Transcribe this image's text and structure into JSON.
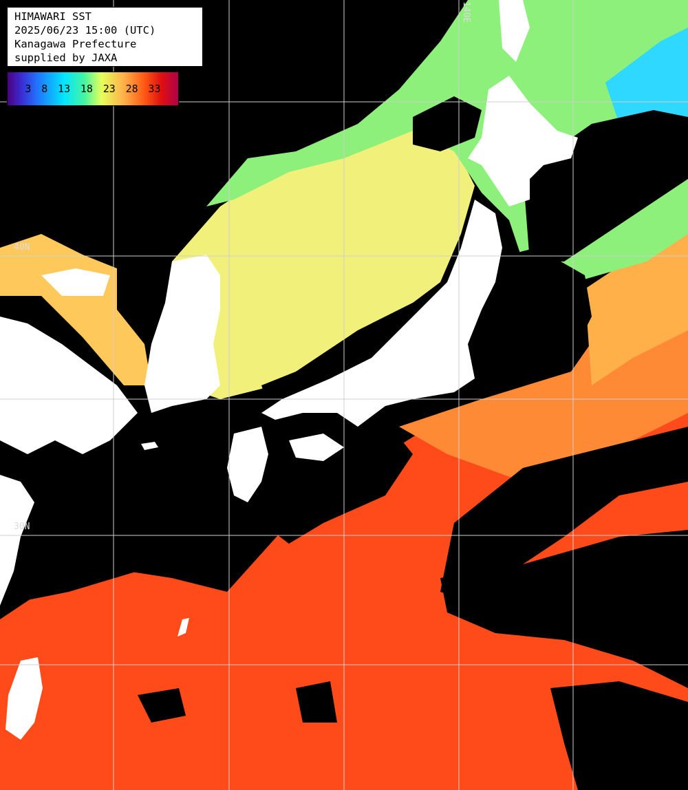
{
  "info": {
    "title": "HIMAWARI SST",
    "datetime": "2025/06/23 15:00 (UTC)",
    "region": "Kanagawa Prefecture",
    "credit": "supplied by JAXA"
  },
  "legend": {
    "ticks": [
      "3",
      "8",
      "13",
      "18",
      "23",
      "28",
      "33"
    ],
    "colors": [
      "#4b0082",
      "#1f78ff",
      "#00e5ff",
      "#e6ff5a",
      "#ffb04a",
      "#ff5a14",
      "#b0004a"
    ]
  },
  "grid_labels": {
    "lon_140": "140E",
    "lat_40": "40N",
    "lat_30": "30N"
  },
  "colors": {
    "cloud": "#000000",
    "land": "#ffffff",
    "north_sea": "#8cf07a",
    "japan_sea": "#f0f07a",
    "warm_sea": "#ffa040",
    "tropical_sea": "#ff4a1a",
    "cold_sea": "#2fd8ff",
    "grid": "#cfcfcf"
  }
}
